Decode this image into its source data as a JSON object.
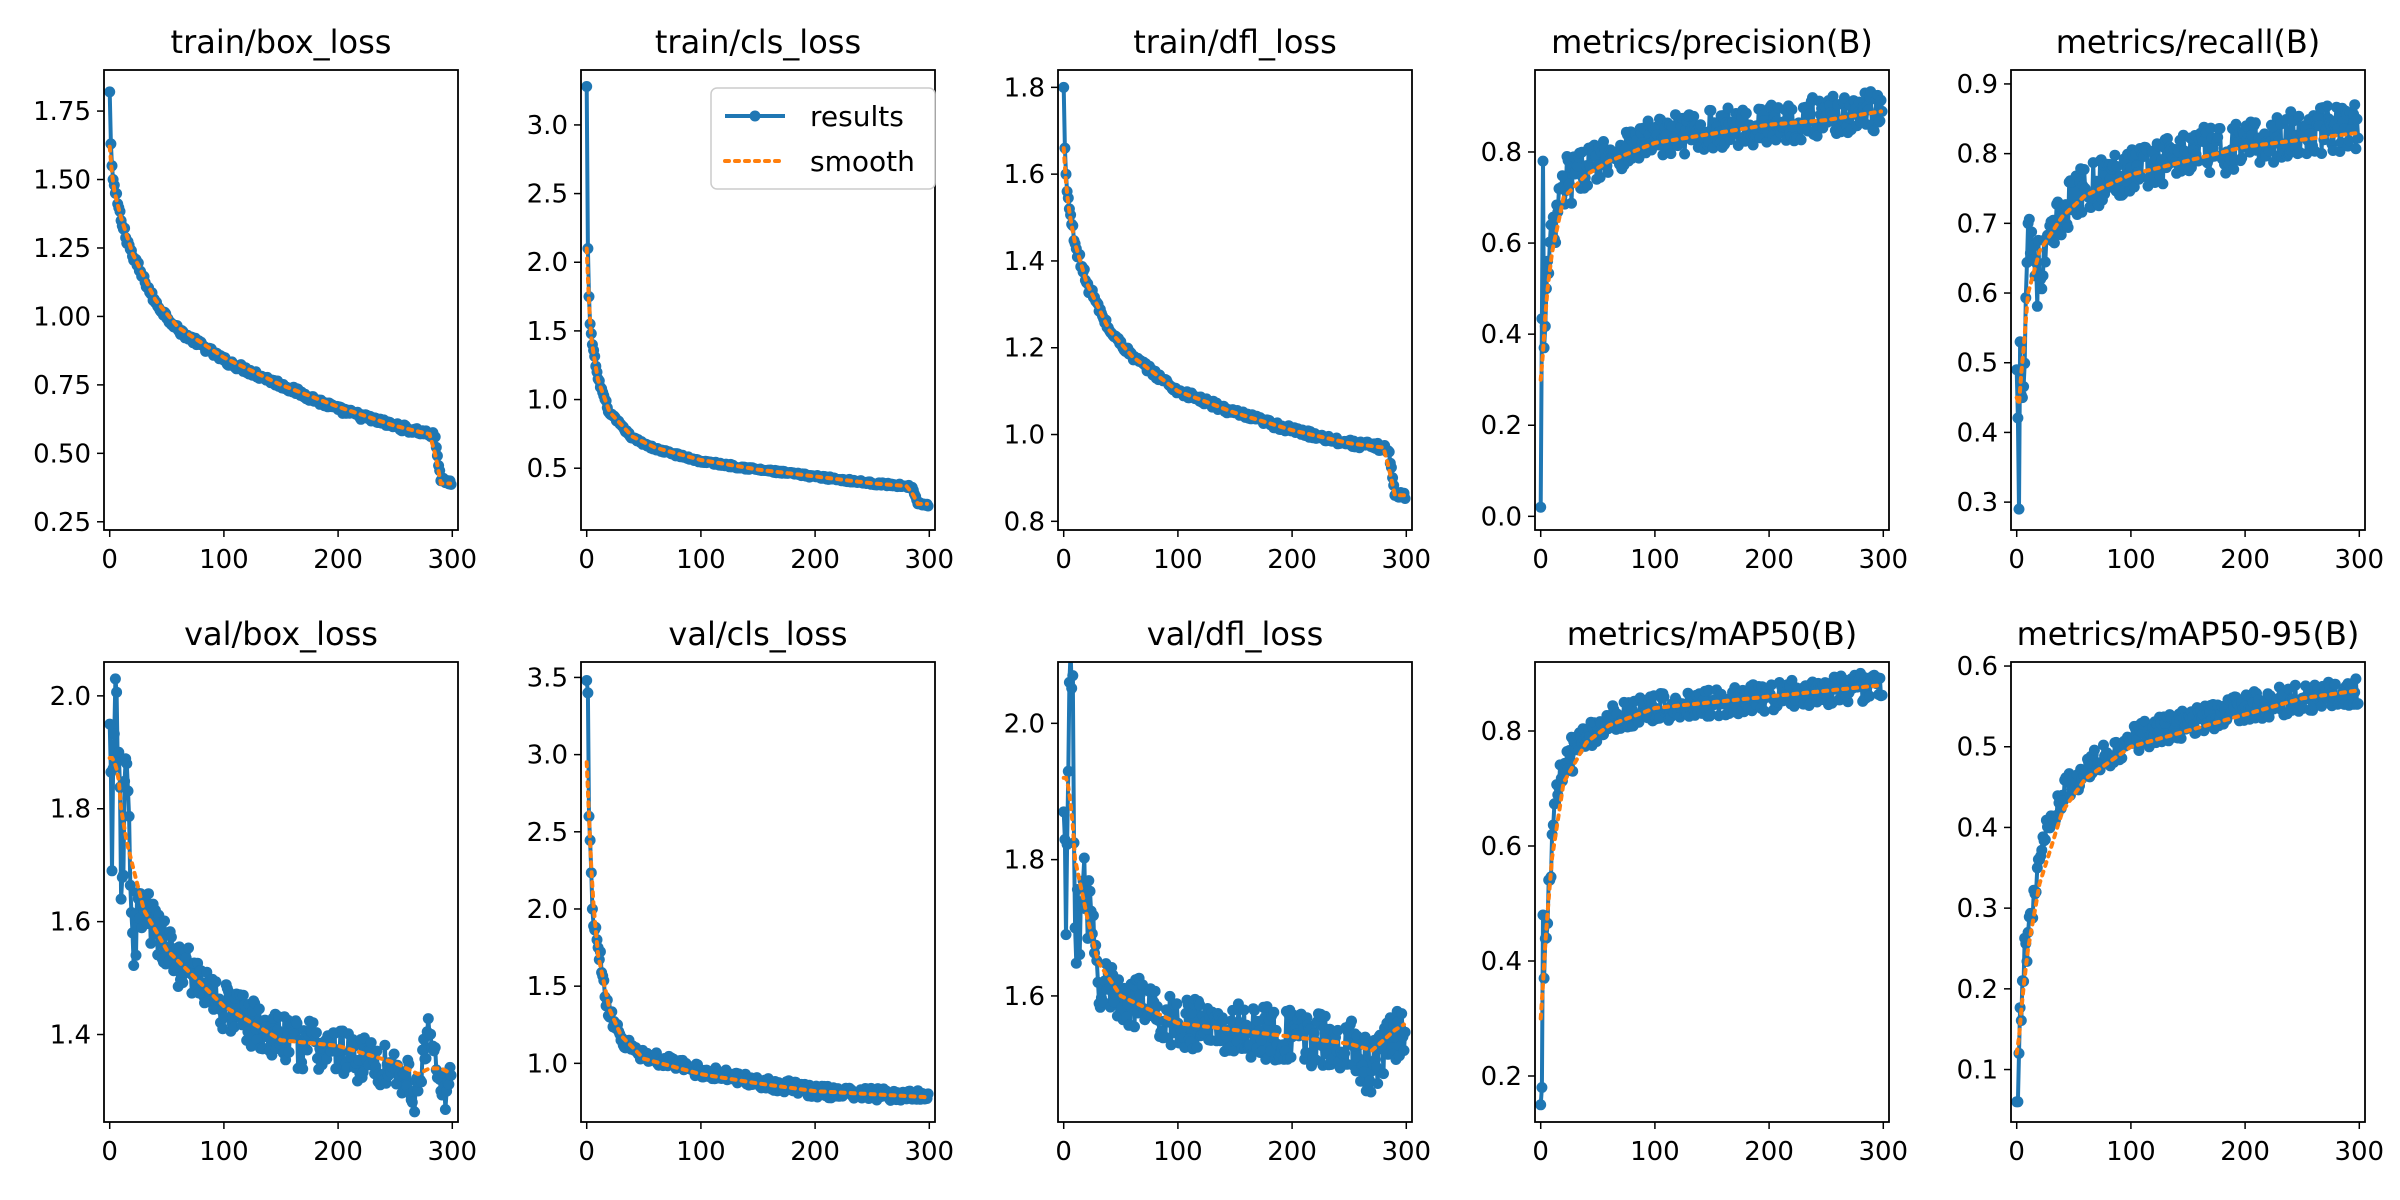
{
  "figure": {
    "colors": {
      "results": "#1f77b4",
      "smooth": "#ff7f0e"
    },
    "legend": {
      "entries": [
        "results",
        "smooth"
      ],
      "placement": "upper-right of second panel"
    }
  },
  "chart_data": [
    {
      "type": "line",
      "title": "train/box_loss",
      "xlim": [
        -5,
        305
      ],
      "ylim": [
        0.22,
        1.9
      ],
      "xticks": [
        "0",
        "100",
        "200",
        "300"
      ],
      "yticks": [
        "0.25",
        "0.50",
        "0.75",
        "1.00",
        "1.25",
        "1.50",
        "1.75"
      ],
      "ytick_values": [
        0.25,
        0.5,
        0.75,
        1.0,
        1.25,
        1.5,
        1.75
      ],
      "curve": {
        "kind": "decay",
        "start": 1.82,
        "end": 0.55,
        "k": 0.023,
        "lin": 0.0008,
        "noise": 0.012
      },
      "x": [
        0,
        1,
        2,
        3,
        5,
        10,
        20,
        40,
        60,
        100,
        150,
        200,
        250,
        280,
        285,
        290,
        300
      ],
      "series": [
        {
          "name": "results",
          "values": [
            1.82,
            1.63,
            1.55,
            1.5,
            1.45,
            1.35,
            1.22,
            1.05,
            0.95,
            0.84,
            0.75,
            0.66,
            0.6,
            0.57,
            0.56,
            0.4,
            0.39
          ]
        },
        {
          "name": "smooth",
          "values": [
            1.62,
            1.56,
            1.52,
            1.48,
            1.44,
            1.36,
            1.23,
            1.06,
            0.96,
            0.85,
            0.75,
            0.67,
            0.6,
            0.57,
            0.5,
            0.39,
            0.39
          ]
        }
      ]
    },
    {
      "type": "line",
      "title": "train/cls_loss",
      "xlim": [
        -5,
        305
      ],
      "ylim": [
        0.05,
        3.4
      ],
      "xticks": [
        "0",
        "100",
        "200",
        "300"
      ],
      "yticks": [
        "0.5",
        "1.0",
        "1.5",
        "2.0",
        "2.5",
        "3.0"
      ],
      "ytick_values": [
        0.5,
        1.0,
        1.5,
        2.0,
        2.5,
        3.0
      ],
      "curve": {
        "kind": "decay",
        "start": 3.28,
        "end": 0.36,
        "k": 0.06,
        "lin": 0.0012,
        "noise": 0.01
      },
      "x": [
        0,
        1,
        2,
        3,
        5,
        10,
        20,
        40,
        60,
        100,
        150,
        200,
        250,
        280,
        285,
        290,
        300
      ],
      "series": [
        {
          "name": "results",
          "values": [
            3.28,
            2.1,
            1.75,
            1.55,
            1.4,
            1.15,
            0.9,
            0.72,
            0.64,
            0.55,
            0.49,
            0.44,
            0.39,
            0.37,
            0.36,
            0.24,
            0.23
          ]
        },
        {
          "name": "smooth",
          "values": [
            2.1,
            1.95,
            1.7,
            1.52,
            1.38,
            1.14,
            0.91,
            0.73,
            0.65,
            0.56,
            0.49,
            0.44,
            0.39,
            0.37,
            0.32,
            0.24,
            0.24
          ]
        }
      ]
    },
    {
      "type": "line",
      "title": "train/dfl_loss",
      "xlim": [
        -5,
        305
      ],
      "ylim": [
        0.78,
        1.84
      ],
      "xticks": [
        "0",
        "100",
        "200",
        "300"
      ],
      "yticks": [
        "0.8",
        "1.0",
        "1.2",
        "1.4",
        "1.6",
        "1.8"
      ],
      "ytick_values": [
        0.8,
        1.0,
        1.2,
        1.4,
        1.6,
        1.8
      ],
      "curve": {
        "kind": "decay",
        "start": 1.8,
        "end": 0.96,
        "k": 0.025,
        "lin": 0.00045,
        "noise": 0.008
      },
      "x": [
        0,
        1,
        2,
        3,
        5,
        10,
        20,
        40,
        60,
        100,
        150,
        200,
        250,
        280,
        285,
        290,
        300
      ],
      "series": [
        {
          "name": "results",
          "values": [
            1.8,
            1.66,
            1.6,
            1.56,
            1.52,
            1.44,
            1.35,
            1.24,
            1.18,
            1.1,
            1.05,
            1.01,
            0.98,
            0.97,
            0.96,
            0.86,
            0.86
          ]
        },
        {
          "name": "smooth",
          "values": [
            1.66,
            1.62,
            1.58,
            1.55,
            1.51,
            1.44,
            1.35,
            1.24,
            1.18,
            1.1,
            1.05,
            1.01,
            0.98,
            0.97,
            0.92,
            0.86,
            0.86
          ]
        }
      ]
    },
    {
      "type": "line",
      "title": "metrics/precision(B)",
      "xlim": [
        -5,
        305
      ],
      "ylim": [
        -0.03,
        0.98
      ],
      "xticks": [
        "0",
        "100",
        "200",
        "300"
      ],
      "yticks": [
        "0.0",
        "0.2",
        "0.4",
        "0.6",
        "0.8"
      ],
      "ytick_values": [
        0.0,
        0.2,
        0.4,
        0.6,
        0.8
      ],
      "curve": {
        "kind": "rise",
        "start": 0.0,
        "end": 0.89,
        "k": 0.1,
        "lin": 0.0006,
        "noise": 0.045
      },
      "x": [
        0,
        2,
        3,
        5,
        10,
        20,
        40,
        60,
        100,
        150,
        200,
        250,
        300
      ],
      "series": [
        {
          "name": "results",
          "values": [
            0.02,
            0.78,
            0.37,
            0.5,
            0.6,
            0.72,
            0.77,
            0.8,
            0.83,
            0.85,
            0.86,
            0.88,
            0.89
          ]
        },
        {
          "name": "smooth",
          "values": [
            0.3,
            0.36,
            0.4,
            0.48,
            0.58,
            0.7,
            0.75,
            0.78,
            0.82,
            0.84,
            0.86,
            0.87,
            0.89
          ]
        }
      ]
    },
    {
      "type": "line",
      "title": "metrics/recall(B)",
      "xlim": [
        -5,
        305
      ],
      "ylim": [
        0.26,
        0.92
      ],
      "xticks": [
        "0",
        "100",
        "200",
        "300"
      ],
      "yticks": [
        "0.3",
        "0.4",
        "0.5",
        "0.6",
        "0.7",
        "0.8",
        "0.9"
      ],
      "ytick_values": [
        0.3,
        0.4,
        0.5,
        0.6,
        0.7,
        0.8,
        0.9
      ],
      "curve": {
        "kind": "rise",
        "start": 0.35,
        "end": 0.84,
        "k": 0.055,
        "lin": 0.0002,
        "noise": 0.035
      },
      "x": [
        0,
        2,
        3,
        5,
        10,
        20,
        40,
        60,
        100,
        150,
        200,
        250,
        300
      ],
      "series": [
        {
          "name": "results",
          "values": [
            0.49,
            0.29,
            0.53,
            0.45,
            0.7,
            0.62,
            0.72,
            0.75,
            0.78,
            0.8,
            0.81,
            0.83,
            0.84
          ]
        },
        {
          "name": "smooth",
          "values": [
            0.45,
            0.44,
            0.47,
            0.5,
            0.6,
            0.66,
            0.71,
            0.74,
            0.77,
            0.79,
            0.81,
            0.82,
            0.83
          ]
        }
      ]
    },
    {
      "type": "line",
      "title": "val/box_loss",
      "xlim": [
        -5,
        305
      ],
      "ylim": [
        1.245,
        2.06
      ],
      "xticks": [
        "0",
        "100",
        "200",
        "300"
      ],
      "yticks": [
        "1.4",
        "1.6",
        "1.8",
        "2.0"
      ],
      "ytick_values": [
        1.4,
        1.6,
        1.8,
        2.0
      ],
      "curve": {
        "kind": "decay",
        "start": 1.95,
        "end": 1.33,
        "k": 0.025,
        "lin": 0.0003,
        "noise": 0.045
      },
      "x": [
        0,
        2,
        5,
        8,
        10,
        15,
        20,
        30,
        50,
        100,
        150,
        200,
        250,
        270,
        280,
        290,
        300
      ],
      "series": [
        {
          "name": "results",
          "values": [
            1.95,
            1.69,
            2.03,
            1.9,
            1.64,
            1.88,
            1.58,
            1.62,
            1.55,
            1.45,
            1.39,
            1.37,
            1.34,
            1.3,
            1.4,
            1.3,
            1.32
          ]
        },
        {
          "name": "smooth",
          "values": [
            1.89,
            1.89,
            1.88,
            1.85,
            1.8,
            1.74,
            1.7,
            1.62,
            1.55,
            1.45,
            1.39,
            1.38,
            1.35,
            1.33,
            1.34,
            1.34,
            1.33
          ]
        }
      ]
    },
    {
      "type": "line",
      "title": "val/cls_loss",
      "xlim": [
        -5,
        305
      ],
      "ylim": [
        0.62,
        3.6
      ],
      "xticks": [
        "0",
        "100",
        "200",
        "300"
      ],
      "yticks": [
        "1.0",
        "1.5",
        "2.0",
        "2.5",
        "3.0",
        "3.5"
      ],
      "ytick_values": [
        1.0,
        1.5,
        2.0,
        2.5,
        3.0,
        3.5
      ],
      "curve": {
        "kind": "decay",
        "start": 3.45,
        "end": 0.79,
        "k": 0.06,
        "lin": 0.0006,
        "noise": 0.04
      },
      "x": [
        0,
        1,
        2,
        5,
        10,
        20,
        30,
        50,
        100,
        150,
        200,
        250,
        300
      ],
      "series": [
        {
          "name": "results",
          "values": [
            3.48,
            3.4,
            2.6,
            2.0,
            1.75,
            1.3,
            1.15,
            1.05,
            0.95,
            0.88,
            0.82,
            0.8,
            0.78
          ]
        },
        {
          "name": "smooth",
          "values": [
            2.95,
            2.9,
            2.6,
            2.1,
            1.7,
            1.35,
            1.18,
            1.03,
            0.93,
            0.87,
            0.82,
            0.8,
            0.78
          ]
        }
      ]
    },
    {
      "type": "line",
      "title": "val/dfl_loss",
      "xlim": [
        -5,
        305
      ],
      "ylim": [
        1.415,
        2.09
      ],
      "xticks": [
        "0",
        "100",
        "200",
        "300"
      ],
      "yticks": [
        "1.6",
        "1.8",
        "2.0"
      ],
      "ytick_values": [
        1.6,
        1.8,
        2.0
      ],
      "curve": {
        "kind": "decay",
        "start": 1.95,
        "end": 1.54,
        "k": 0.035,
        "lin": 0.0001,
        "noise": 0.04
      },
      "x": [
        0,
        2,
        5,
        8,
        10,
        20,
        30,
        50,
        100,
        150,
        200,
        250,
        270,
        290,
        300
      ],
      "series": [
        {
          "name": "results",
          "values": [
            1.87,
            1.69,
            2.06,
            2.07,
            1.7,
            1.75,
            1.62,
            1.6,
            1.56,
            1.55,
            1.54,
            1.53,
            1.49,
            1.54,
            1.56
          ]
        },
        {
          "name": "smooth",
          "values": [
            1.92,
            1.92,
            1.9,
            1.85,
            1.8,
            1.72,
            1.65,
            1.6,
            1.56,
            1.55,
            1.54,
            1.53,
            1.52,
            1.55,
            1.56
          ]
        }
      ]
    },
    {
      "type": "line",
      "title": "metrics/mAP50(B)",
      "xlim": [
        -5,
        305
      ],
      "ylim": [
        0.12,
        0.92
      ],
      "xticks": [
        "0",
        "100",
        "200",
        "300"
      ],
      "yticks": [
        "0.2",
        "0.4",
        "0.6",
        "0.8"
      ],
      "ytick_values": [
        0.2,
        0.4,
        0.6,
        0.8
      ],
      "curve": {
        "kind": "rise",
        "start": 0.15,
        "end": 0.88,
        "k": 0.075,
        "lin": 0.00025,
        "noise": 0.025
      },
      "x": [
        0,
        1,
        2,
        3,
        5,
        10,
        20,
        40,
        60,
        100,
        150,
        200,
        250,
        300
      ],
      "series": [
        {
          "name": "results",
          "values": [
            0.15,
            0.18,
            0.48,
            0.37,
            0.44,
            0.62,
            0.74,
            0.79,
            0.82,
            0.84,
            0.85,
            0.86,
            0.87,
            0.88
          ]
        },
        {
          "name": "smooth",
          "values": [
            0.3,
            0.32,
            0.36,
            0.4,
            0.46,
            0.58,
            0.71,
            0.78,
            0.81,
            0.84,
            0.85,
            0.86,
            0.87,
            0.88
          ]
        }
      ]
    },
    {
      "type": "line",
      "title": "metrics/mAP50-95(B)",
      "xlim": [
        -5,
        305
      ],
      "ylim": [
        0.035,
        0.605
      ],
      "xticks": [
        "0",
        "100",
        "200",
        "300"
      ],
      "yticks": [
        "0.1",
        "0.2",
        "0.3",
        "0.4",
        "0.5",
        "0.6"
      ],
      "ytick_values": [
        0.1,
        0.2,
        0.3,
        0.4,
        0.5,
        0.6
      ],
      "curve": {
        "kind": "rise",
        "start": 0.06,
        "end": 0.57,
        "k": 0.03,
        "lin": 0.0004,
        "noise": 0.018
      },
      "x": [
        0,
        1,
        2,
        5,
        10,
        20,
        40,
        60,
        100,
        150,
        200,
        250,
        300
      ],
      "series": [
        {
          "name": "results",
          "values": [
            0.06,
            0.06,
            0.12,
            0.21,
            0.27,
            0.36,
            0.44,
            0.47,
            0.51,
            0.53,
            0.55,
            0.56,
            0.57
          ]
        },
        {
          "name": "smooth",
          "values": [
            0.12,
            0.12,
            0.14,
            0.19,
            0.25,
            0.33,
            0.42,
            0.46,
            0.5,
            0.52,
            0.54,
            0.56,
            0.57
          ]
        }
      ]
    }
  ]
}
